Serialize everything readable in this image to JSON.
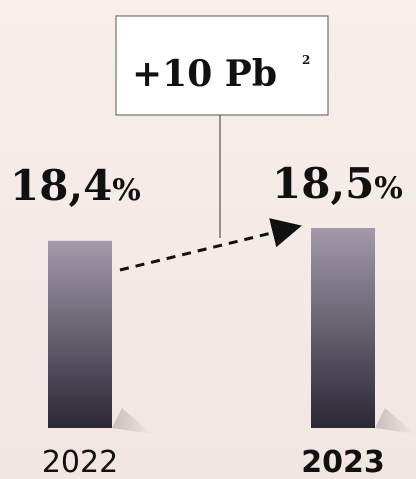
{
  "chart_data": {
    "type": "bar",
    "categories": [
      "2022",
      "2023"
    ],
    "values": [
      18.4,
      18.5
    ],
    "value_labels": [
      {
        "number": "18,4",
        "unit": "%"
      },
      {
        "number": "18,5",
        "unit": "%"
      }
    ],
    "category_bold": [
      false,
      true
    ],
    "callout": {
      "main": "+10 Pb",
      "sup": "2"
    },
    "bar_color_top": "#a29aaa",
    "bar_color_bottom": "#2b2735",
    "title": "",
    "xlabel": "",
    "ylabel": ""
  }
}
